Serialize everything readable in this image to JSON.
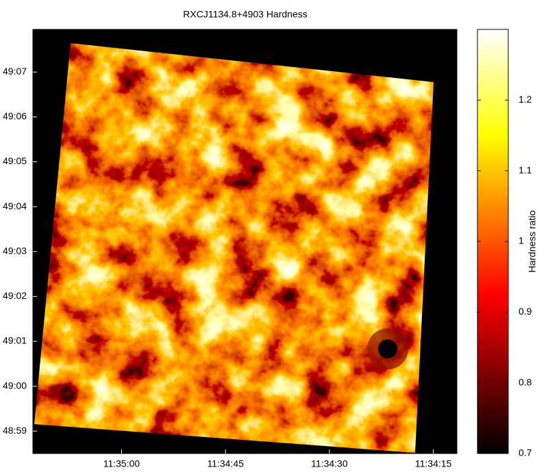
{
  "chart_data": {
    "type": "heatmap",
    "title": "RXCJ1134.8+4903 Hardness",
    "colorbar_label": "Hardness ratio",
    "colormap": "hot",
    "xlim": [
      41712.8,
      41651.6
    ],
    "xticks": [
      {
        "value": 41700,
        "label": "11:35:00"
      },
      {
        "value": 41685,
        "label": "11:34:45"
      },
      {
        "value": 41670,
        "label": "11:34:30"
      },
      {
        "value": 41655,
        "label": "11:34:15"
      }
    ],
    "ylim": [
      2938.5,
      2947.95
    ],
    "yticks": [
      {
        "value": 2939,
        "label": "48:59"
      },
      {
        "value": 2940,
        "label": "49:00"
      },
      {
        "value": 2941,
        "label": "49:01"
      },
      {
        "value": 2942,
        "label": "49:02"
      },
      {
        "value": 2943,
        "label": "49:03"
      },
      {
        "value": 2944,
        "label": "49:04"
      },
      {
        "value": 2945,
        "label": "49:05"
      },
      {
        "value": 2946,
        "label": "49:06"
      },
      {
        "value": 2947,
        "label": "49:07"
      }
    ],
    "clim": [
      0.7,
      1.3
    ],
    "cticks": [
      0.7,
      0.8,
      0.9,
      1,
      1.1,
      1.2
    ]
  }
}
